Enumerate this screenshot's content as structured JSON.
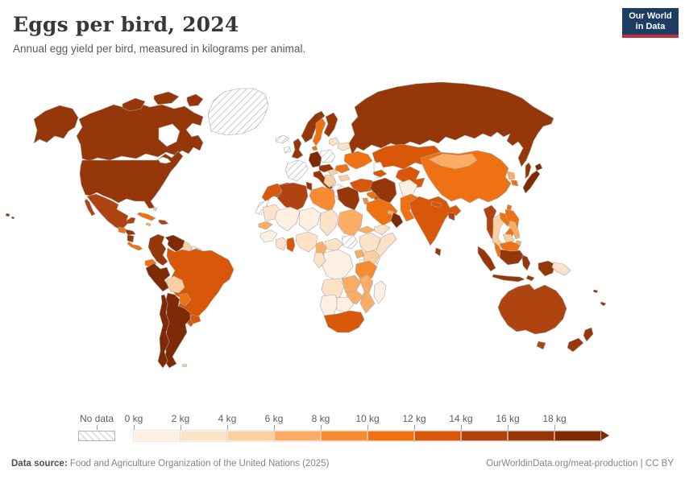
{
  "header": {
    "title": "Eggs per bird, 2024",
    "subtitle": "Annual egg yield per bird, measured in kilograms per animal."
  },
  "logo": {
    "line1": "Our World",
    "line2": "in Data",
    "bg_color": "#1d3d63",
    "accent_color": "#c62d3a"
  },
  "footer": {
    "source_label": "Data source:",
    "source_text": " Food and Agriculture Organization of the United Nations (2025)",
    "right_text": "OurWorldinData.org/meat-production | CC BY"
  },
  "chart_data": {
    "type": "choropleth_map",
    "title": "Eggs per bird, 2024",
    "unit": "kg per animal",
    "legend": {
      "no_data_label": "No data",
      "tick_labels": [
        "0 kg",
        "2 kg",
        "4 kg",
        "6 kg",
        "8 kg",
        "10 kg",
        "12 kg",
        "14 kg",
        "16 kg",
        "18 kg"
      ],
      "bin_starts_kg": [
        0,
        2,
        4,
        6,
        8,
        10,
        12,
        14,
        16,
        18
      ],
      "bin_colors": [
        "#fdf0e2",
        "#fce3c7",
        "#fccfa2",
        "#fbad66",
        "#f78b33",
        "#ee7112",
        "#d85708",
        "#b04410",
        "#96370a",
        "#7e2a05"
      ]
    },
    "regions": {
      "usa": 17,
      "canada": 17,
      "greenland": null,
      "mexico": 15,
      "guatemala": 11,
      "honduras": 17,
      "nicaragua": 17,
      "costa_rica_panama": 11,
      "cuba": 11,
      "jamaica": 7,
      "hispaniola": 15,
      "bahamas": 5,
      "colombia": 17,
      "venezuela": 19,
      "guyana": 5,
      "suriname": 1,
      "french_guiana": 3,
      "ecuador": 11,
      "peru": 19,
      "brazil": 13,
      "bolivia": 5,
      "paraguay": 11,
      "uruguay": 13,
      "argentina": 19,
      "chile": 19,
      "falkland_islands": 5,
      "iceland": null,
      "ireland": null,
      "united_kingdom": 17,
      "norway": 17,
      "sweden": 11,
      "finland": 17,
      "denmark": 11,
      "baltics": 3,
      "belarus": 3,
      "poland": null,
      "germany": 19,
      "france": null,
      "spain": 15,
      "portugal": 17,
      "italy": 17,
      "czech_austria": 17,
      "hungary": 5,
      "balkans": 5,
      "romania": 11,
      "bulgaria": 5,
      "greece": null,
      "ukraine": 11,
      "russia": 17,
      "kazakhstan": 13,
      "caucasus": 13,
      "central_asia": 13,
      "turkey": 13,
      "syria": 11,
      "iraq": 13,
      "israel_jordan": 9,
      "iran": 17,
      "saudi_arabia": 11,
      "yemen": 3,
      "oman": 19,
      "uae": 7,
      "afghanistan": 1,
      "pakistan": 11,
      "india": 13,
      "nepal": 13,
      "bangladesh": 15,
      "sri_lanka": 17,
      "china": 11,
      "mongolia": 7,
      "north_korea": 7,
      "south_korea": 11,
      "japan": 19,
      "taiwan": 11,
      "myanmar": 15,
      "thailand": 5,
      "laos": 11,
      "vietnam": 11,
      "cambodia": 5,
      "malaysia": 11,
      "indonesia": 17,
      "philippines": 7,
      "papua_new_guinea": 3,
      "australia": 15,
      "new_zealand": 17,
      "fiji": 17,
      "new_caledonia": 17,
      "morocco": 13,
      "western_sahara": null,
      "algeria": 15,
      "tunisia": 17,
      "libya": 9,
      "egypt": 17,
      "mauritania": 3,
      "mali": 1,
      "niger": 1,
      "chad": 3,
      "sudan": 7,
      "south_sudan": null,
      "senegal": 7,
      "guinea": 1,
      "cote_divoire": 3,
      "ghana": 13,
      "nigeria": 3,
      "cameroon": 7,
      "central_african_rep": 3,
      "eritrea": 7,
      "ethiopia": 3,
      "somalia": 3,
      "kenya": 5,
      "uganda": 7,
      "tanzania": 9,
      "drc": 1,
      "congo_gabon": 3,
      "angola": 3,
      "zambia": 7,
      "mozambique": 7,
      "zimbabwe": 7,
      "namibia": 1,
      "botswana": 1,
      "south_africa": 13,
      "madagascar": 1
    }
  }
}
